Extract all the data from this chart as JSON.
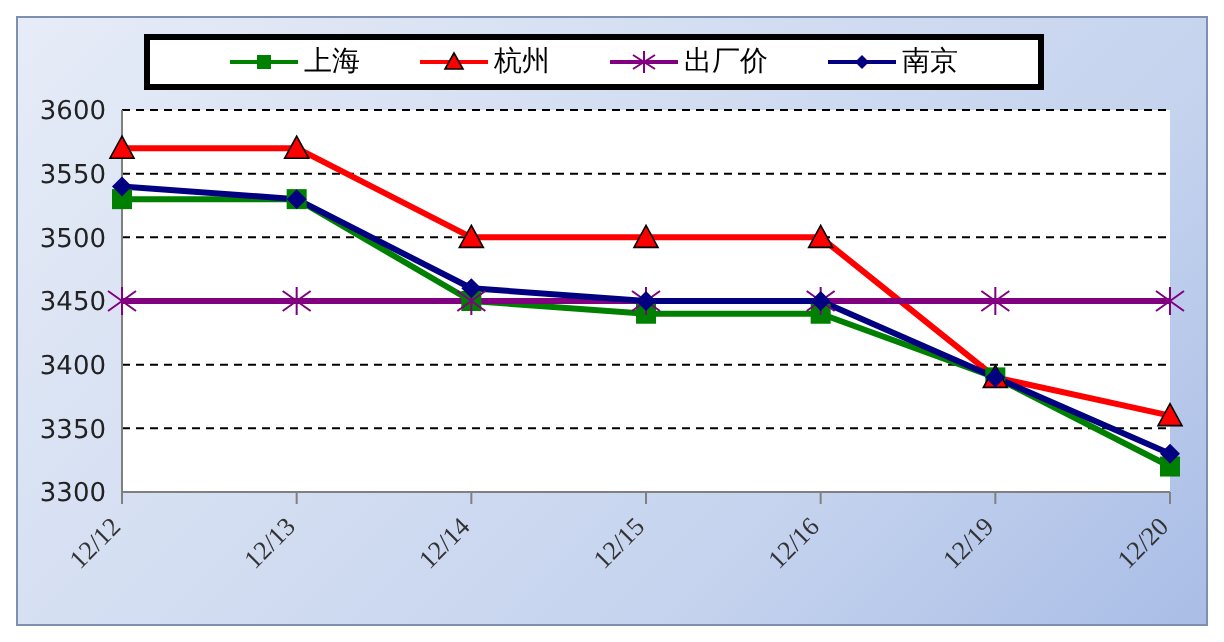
{
  "chart_data": {
    "type": "line",
    "categories": [
      "12/12",
      "12/13",
      "12/14",
      "12/15",
      "12/16",
      "12/19",
      "12/20"
    ],
    "series": [
      {
        "name": "上海",
        "color": "#008000",
        "marker": "square",
        "values": [
          3530,
          3530,
          3450,
          3440,
          3440,
          3390,
          3320
        ]
      },
      {
        "name": "杭州",
        "color": "#ff0000",
        "marker": "triangle",
        "values": [
          3570,
          3570,
          3500,
          3500,
          3500,
          3390,
          3360
        ]
      },
      {
        "name": "出厂价",
        "color": "#800080",
        "marker": "cross",
        "values": [
          3450,
          3450,
          3450,
          3450,
          3450,
          3450,
          3450
        ]
      },
      {
        "name": "南京",
        "color": "#000080",
        "marker": "diamond",
        "values": [
          3540,
          3530,
          3460,
          3450,
          3450,
          3390,
          3330
        ]
      }
    ],
    "ylim": [
      3300,
      3600
    ],
    "yticks": [
      3300,
      3350,
      3400,
      3450,
      3500,
      3550,
      3600
    ],
    "grid": "y",
    "legend": "top",
    "line_style": "solid"
  }
}
